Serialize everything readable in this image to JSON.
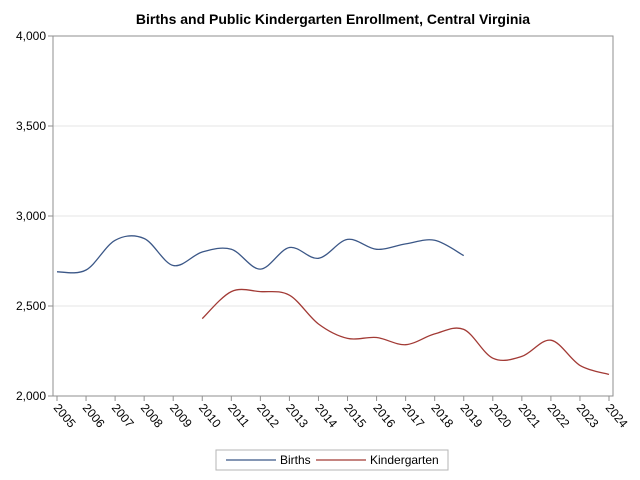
{
  "chart_data": {
    "type": "line",
    "title": "Births and Public Kindergarten Enrollment, Central Virginia",
    "xlabel": "",
    "ylabel": "",
    "x": [
      "2005",
      "2006",
      "2007",
      "2008",
      "2009",
      "2010",
      "2011",
      "2012",
      "2013",
      "2014",
      "2015",
      "2016",
      "2017",
      "2018",
      "2019",
      "2020",
      "2021",
      "2022",
      "2023",
      "2024"
    ],
    "ylim": [
      2000,
      4000
    ],
    "yticks": [
      2000,
      2500,
      3000,
      3500,
      4000
    ],
    "ytick_labels": [
      "2,000",
      "2,500",
      "3,000",
      "3,500",
      "4,000"
    ],
    "grid": true,
    "legend_position": "bottom-center",
    "series": [
      {
        "name": "Births",
        "color": "#3b5787",
        "values": [
          2690,
          2700,
          2865,
          2875,
          2725,
          2800,
          2815,
          2705,
          2825,
          2765,
          2870,
          2815,
          2845,
          2865,
          2780,
          null,
          null,
          null,
          null,
          null
        ]
      },
      {
        "name": "Kindergarten",
        "color": "#a23a35",
        "values": [
          null,
          null,
          null,
          null,
          null,
          2430,
          2580,
          2580,
          2560,
          2400,
          2320,
          2325,
          2285,
          2345,
          2370,
          2210,
          2220,
          2310,
          2170,
          2120
        ]
      }
    ]
  }
}
